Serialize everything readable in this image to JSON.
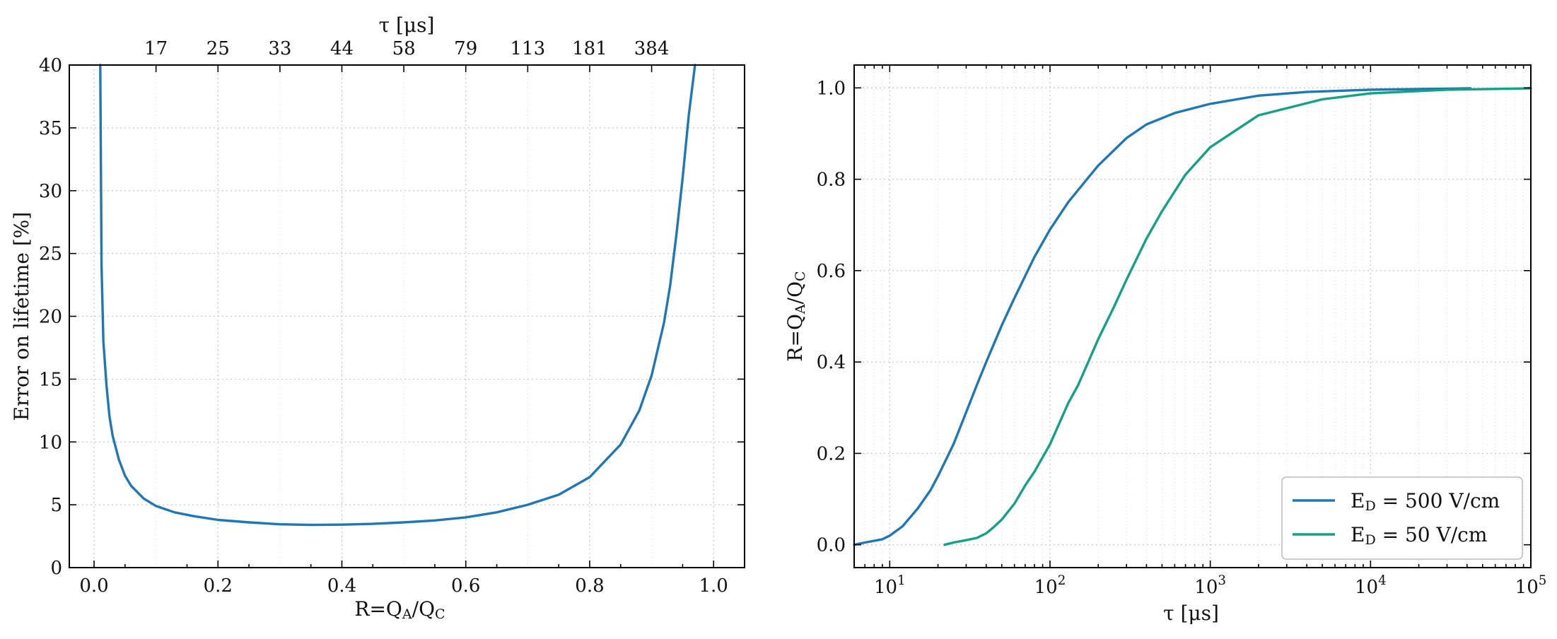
{
  "colors": {
    "series_a": "#1f77b4",
    "series_b": "#16a085",
    "axes": "#000000",
    "grid": "#c9c9c9"
  },
  "chart_data": [
    {
      "type": "line",
      "title": "",
      "xlabel": "R=Q_A/Q_C",
      "ylabel": "Error on lifetime [%]",
      "top_xlabel": "τ [μs]",
      "xlim": [
        -0.04,
        1.05
      ],
      "ylim": [
        0,
        40
      ],
      "grid": true,
      "x_ticks": [
        0.0,
        0.2,
        0.4,
        0.6,
        0.8,
        1.0
      ],
      "x_tick_labels": [
        "0.0",
        "0.2",
        "0.4",
        "0.6",
        "0.8",
        "1.0"
      ],
      "y_ticks": [
        0,
        5,
        10,
        15,
        20,
        25,
        30,
        35,
        40
      ],
      "y_tick_labels": [
        "0",
        "5",
        "10",
        "15",
        "20",
        "25",
        "30",
        "35",
        "40"
      ],
      "top_ticks": [
        0.1,
        0.2,
        0.3,
        0.4,
        0.5,
        0.6,
        0.7,
        0.8,
        0.9
      ],
      "top_tick_labels": [
        "17",
        "25",
        "33",
        "44",
        "58",
        "79",
        "113",
        "181",
        "384"
      ],
      "series": [
        {
          "x": [
            0.01,
            0.012,
            0.015,
            0.02,
            0.025,
            0.03,
            0.04,
            0.05,
            0.06,
            0.08,
            0.1,
            0.13,
            0.16,
            0.2,
            0.25,
            0.3,
            0.35,
            0.4,
            0.45,
            0.5,
            0.55,
            0.6,
            0.65,
            0.7,
            0.75,
            0.8,
            0.85,
            0.88,
            0.9,
            0.92,
            0.93,
            0.94,
            0.95,
            0.96,
            0.97
          ],
          "y": [
            40,
            24,
            18,
            14.5,
            12,
            10.5,
            8.6,
            7.3,
            6.5,
            5.5,
            4.9,
            4.4,
            4.1,
            3.8,
            3.6,
            3.45,
            3.4,
            3.42,
            3.48,
            3.6,
            3.75,
            4.0,
            4.4,
            5.0,
            5.8,
            7.2,
            9.8,
            12.5,
            15.3,
            19.5,
            22.5,
            26.5,
            31,
            36,
            40
          ]
        }
      ]
    },
    {
      "type": "line",
      "title": "",
      "xlabel": "τ [μs]",
      "ylabel": "R=Q_A/Q_C",
      "x_scale": "log",
      "xlim": [
        6,
        100000
      ],
      "ylim": [
        -0.05,
        1.05
      ],
      "grid": true,
      "legend_position": "lower-right",
      "x_ticks": [
        10,
        100,
        1000,
        10000,
        100000
      ],
      "x_tick_bases": [
        "10",
        "10",
        "10",
        "10",
        "10"
      ],
      "x_tick_exponents": [
        "1",
        "2",
        "3",
        "4",
        "5"
      ],
      "y_ticks": [
        0.0,
        0.2,
        0.4,
        0.6,
        0.8,
        1.0
      ],
      "y_tick_labels": [
        "0.0",
        "0.2",
        "0.4",
        "0.6",
        "0.8",
        "1.0"
      ],
      "series": [
        {
          "name": "E_D = 500 V/cm",
          "color": "#1f77b4",
          "x": [
            6,
            7,
            9,
            10,
            12,
            15,
            18,
            20,
            25,
            30,
            35,
            40,
            50,
            60,
            80,
            100,
            130,
            170,
            200,
            300,
            400,
            600,
            1000,
            2000,
            4000,
            10000,
            42000
          ],
          "y": [
            0.0,
            0.005,
            0.012,
            0.02,
            0.04,
            0.08,
            0.12,
            0.15,
            0.22,
            0.29,
            0.35,
            0.4,
            0.48,
            0.54,
            0.63,
            0.69,
            0.75,
            0.8,
            0.83,
            0.89,
            0.92,
            0.945,
            0.965,
            0.983,
            0.991,
            0.996,
            0.999
          ]
        },
        {
          "name": "E_D = 50 V/cm",
          "color": "#16a085",
          "x": [
            22,
            25,
            30,
            35,
            40,
            45,
            50,
            60,
            70,
            80,
            100,
            130,
            150,
            200,
            250,
            300,
            400,
            500,
            700,
            1000,
            2000,
            5000,
            10000,
            30000,
            100000
          ],
          "y": [
            0.0,
            0.005,
            0.01,
            0.015,
            0.025,
            0.04,
            0.055,
            0.09,
            0.13,
            0.16,
            0.22,
            0.31,
            0.35,
            0.45,
            0.52,
            0.58,
            0.67,
            0.73,
            0.81,
            0.87,
            0.94,
            0.975,
            0.988,
            0.996,
            0.999
          ]
        }
      ]
    }
  ]
}
